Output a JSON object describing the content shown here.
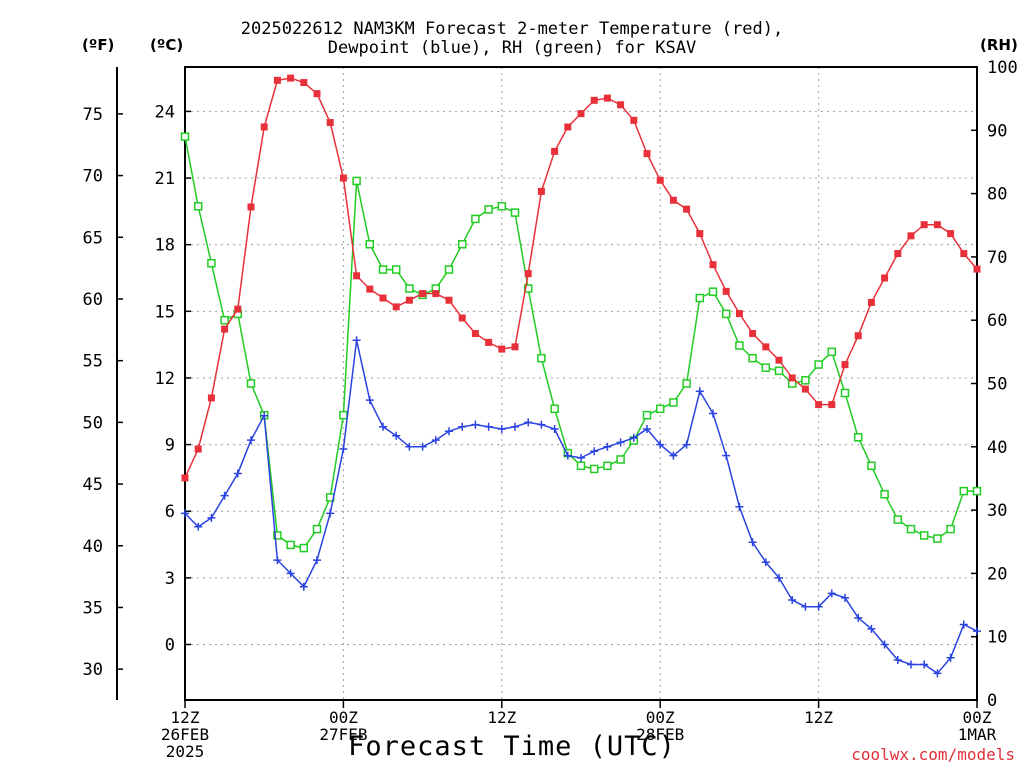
{
  "chart_data": {
    "type": "line",
    "title": [
      "2025022612 NAM3KM Forecast 2-meter Temperature (red),",
      "Dewpoint (blue), RH (green) for KSAV"
    ],
    "xlabel": "Forecast Time (UTC)",
    "units": {
      "fahrenheit": "(ºF)",
      "celsius": "(ºC)",
      "rh": "(RH)"
    },
    "credit": "coolwx.com/models",
    "x_hours": [
      0,
      1,
      2,
      3,
      4,
      5,
      6,
      7,
      8,
      9,
      10,
      11,
      12,
      13,
      14,
      15,
      16,
      17,
      18,
      19,
      20,
      21,
      22,
      23,
      24,
      25,
      26,
      27,
      28,
      29,
      30,
      31,
      32,
      33,
      34,
      35,
      36,
      37,
      38,
      39,
      40,
      41,
      42,
      43,
      44,
      45,
      46,
      47,
      48,
      49,
      50,
      51,
      52,
      53,
      54,
      55,
      56,
      57,
      58,
      59,
      60
    ],
    "x_ticks": [
      {
        "hour": 0,
        "label": [
          "12Z",
          "26FEB",
          "2025"
        ]
      },
      {
        "hour": 12,
        "label": [
          "00Z",
          "27FEB"
        ]
      },
      {
        "hour": 24,
        "label": [
          "12Z"
        ]
      },
      {
        "hour": 36,
        "label": [
          "00Z",
          "28FEB"
        ]
      },
      {
        "hour": 48,
        "label": [
          "12Z"
        ]
      },
      {
        "hour": 60,
        "label": [
          "00Z",
          "1MAR"
        ]
      }
    ],
    "c_axis": {
      "ylim": [
        -2.5,
        26
      ],
      "ticks": [
        0,
        3,
        6,
        9,
        12,
        15,
        18,
        21,
        24
      ]
    },
    "f_axis": {
      "ticks": [
        30,
        35,
        40,
        45,
        50,
        55,
        60,
        65,
        70,
        75
      ]
    },
    "rh_axis": {
      "ylim": [
        0,
        100
      ],
      "ticks": [
        0,
        10,
        20,
        30,
        40,
        50,
        60,
        70,
        80,
        90,
        100
      ]
    },
    "grid": true,
    "series": [
      {
        "name": "Temperature",
        "axis": "c",
        "color": "#e8303a",
        "marker": "filled-square",
        "values": [
          7.5,
          8.8,
          11.1,
          14.2,
          15.1,
          19.7,
          23.3,
          25.4,
          25.5,
          25.3,
          24.8,
          23.5,
          21.0,
          16.6,
          16.0,
          15.6,
          15.2,
          15.5,
          15.8,
          15.8,
          15.5,
          14.7,
          14.0,
          13.6,
          13.3,
          13.4,
          16.7,
          20.4,
          22.2,
          23.3,
          23.9,
          24.5,
          24.6,
          24.3,
          23.6,
          22.1,
          20.9,
          20.0,
          19.6,
          18.5,
          17.1,
          15.9,
          14.9,
          14.0,
          13.4,
          12.8,
          12.0,
          11.5,
          10.8,
          10.8,
          12.6,
          13.9,
          15.4,
          16.5,
          17.6,
          18.4,
          18.9,
          18.9,
          18.5,
          17.6,
          16.9
        ]
      },
      {
        "name": "Dewpoint",
        "axis": "c",
        "color": "#2a43e0",
        "marker": "plus",
        "values": [
          5.9,
          5.3,
          5.7,
          6.7,
          7.7,
          9.2,
          10.3,
          3.8,
          3.2,
          2.6,
          3.8,
          5.9,
          8.8,
          13.7,
          11.0,
          9.8,
          9.4,
          8.9,
          8.9,
          9.2,
          9.6,
          9.8,
          9.9,
          9.8,
          9.7,
          9.8,
          10.0,
          9.9,
          9.7,
          8.5,
          8.4,
          8.7,
          8.9,
          9.1,
          9.3,
          9.7,
          9.0,
          8.5,
          9.0,
          11.4,
          10.4,
          8.5,
          6.2,
          4.6,
          3.7,
          3.0,
          2.0,
          1.7,
          1.7,
          2.3,
          2.1,
          1.2,
          0.7,
          0.0,
          -0.7,
          -0.9,
          -0.9,
          -1.3,
          -0.6,
          0.9,
          0.6
        ]
      },
      {
        "name": "RH",
        "axis": "rh",
        "color": "#22cc22",
        "marker": "open-square",
        "values": [
          89,
          78,
          69,
          60,
          61,
          50,
          45,
          26,
          24.5,
          24,
          27,
          32,
          45,
          82,
          72,
          68,
          68,
          65,
          64,
          65,
          68,
          72,
          76,
          77.5,
          78,
          77,
          65,
          54,
          46,
          39,
          37,
          36.5,
          37,
          38,
          41,
          45,
          46,
          47,
          50,
          63.5,
          64.5,
          61,
          56,
          54,
          52.5,
          52,
          50,
          50.5,
          53,
          55,
          48.5,
          41.5,
          37,
          32.5,
          28.5,
          27,
          26,
          25.5,
          27,
          33,
          33
        ]
      }
    ]
  }
}
